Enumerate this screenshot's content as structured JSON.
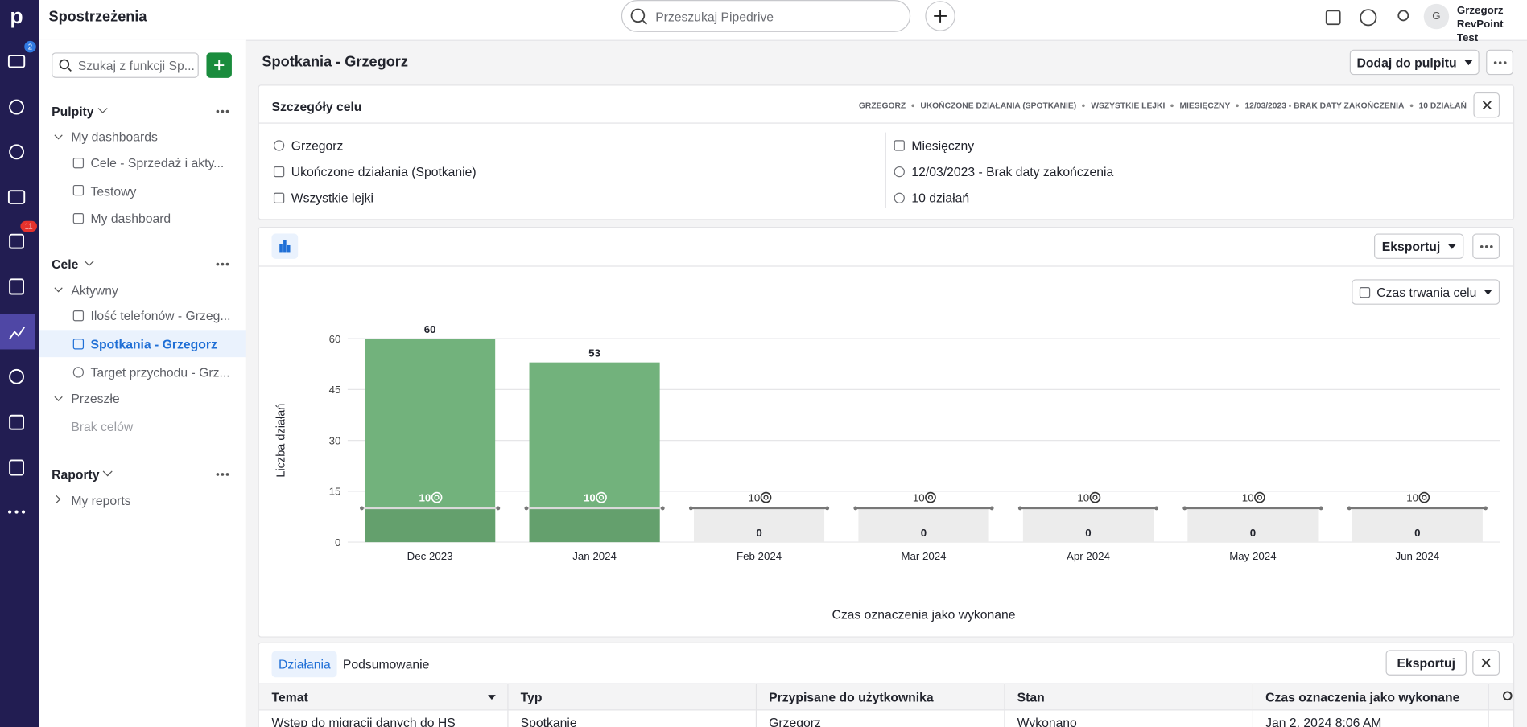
{
  "topbar": {
    "title": "Spostrzeżenia",
    "search": "Przeszukaj Pipedrive",
    "avatar": "G",
    "user": "Grzegorz",
    "company": "RevPoint Test"
  },
  "nav": {
    "badges": [
      "2",
      "11"
    ]
  },
  "sidebar": {
    "search": "Szukaj z funkcji Sp...",
    "sections": [
      {
        "title": "Pulpity",
        "groups": [
          {
            "title": "My dashboards",
            "items": [
              "Cele - Sprzedaż i akty...",
              "Testowy",
              "My dashboard"
            ]
          }
        ]
      },
      {
        "title": "Cele",
        "groups": [
          {
            "title": "Aktywny",
            "items": [
              "Ilość telefonów - Grzeg...",
              "Spotkania - Grzegorz",
              "Target przychodu - Grz..."
            ]
          },
          {
            "title": "Przeszłe",
            "items": [
              "Brak celów"
            ]
          }
        ]
      },
      {
        "title": "Raporty",
        "groups": [
          {
            "title": "My reports",
            "items": []
          }
        ]
      }
    ]
  },
  "header": {
    "title": "Spotkania - Grzegorz",
    "button": "Dodaj do pulpitu"
  },
  "details": {
    "title": "Szczegóły celu",
    "tags": [
      "GRZEGORZ",
      "UKOŃCZONE DZIAŁANIA (SPOTKANIE)",
      "WSZYSTKIE LEJKI",
      "MIESIĘCZNY",
      "12/03/2023 - BRAK DATY ZAKOŃCZENIA",
      "10 DZIAŁAŃ"
    ],
    "fields": [
      "Grzegorz",
      "Ukończone działania (Spotkanie)",
      "Wszystkie lejki",
      "Miesięczny",
      "12/03/2023 - Brak daty zakończenia",
      "10 działań"
    ]
  },
  "chart_card": {
    "export": "Eksportuj",
    "period": "Czas trwania celu"
  },
  "chart_data": {
    "type": "bar",
    "categories": [
      "Dec 2023",
      "Jan 2024",
      "Feb 2024",
      "Mar 2024",
      "Apr 2024",
      "May 2024",
      "Jun 2024"
    ],
    "values": [
      60,
      53,
      0,
      0,
      0,
      0,
      0
    ],
    "targets": [
      10,
      10,
      10,
      10,
      10,
      10,
      10
    ],
    "color": "#72b27c",
    "target_color": "#64a06d",
    "empty_color": "#ececec",
    "ylim": [
      0,
      60
    ],
    "yticks": [
      0,
      15,
      30,
      45,
      60
    ],
    "grid": true,
    "y_label": "Liczba działań",
    "x_label": "Czas oznaczenia jako wykonane"
  },
  "table": {
    "tabs": [
      "Działania",
      "Podsumowanie"
    ],
    "export": "Eksportuj",
    "columns": [
      "Temat",
      "Typ",
      "Przypisane do użytkownika",
      "Stan",
      "Czas oznaczenia jako wykonane"
    ],
    "rows": [
      [
        "Wstęp do migracji danych do HS",
        "Spotkanie",
        "Grzegorz",
        "Wykonano",
        "Jan 2, 2024 8:06 AM"
      ]
    ]
  }
}
